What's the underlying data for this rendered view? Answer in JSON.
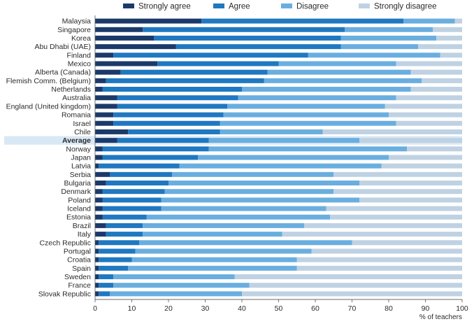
{
  "chart_data": {
    "type": "bar",
    "orientation": "horizontal",
    "stacked": true,
    "xlabel": "% of teachers",
    "xlim": [
      0,
      100
    ],
    "xticks": [
      0,
      10,
      20,
      30,
      40,
      50,
      60,
      70,
      80,
      90,
      100
    ],
    "legend_position": "top",
    "highlight_category": "Average",
    "categories": [
      "Malaysia",
      "Singapore",
      "Korea",
      "Abu Dhabi (UAE)",
      "Finland",
      "Mexico",
      "Alberta (Canada)",
      "Flemish Comm. (Belgium)",
      "Netherlands",
      "Australia",
      "England (United kingdom)",
      "Romania",
      "Israel",
      "Chile",
      "Average",
      "Norway",
      "Japan",
      "Latvia",
      "Serbia",
      "Bulgaria",
      "Denmark",
      "Poland",
      "Iceland",
      "Estonia",
      "Brazil",
      "Italy",
      "Czech Republic",
      "Portugal",
      "Croatia",
      "Spain",
      "Sweden",
      "France",
      "Slovak Republic"
    ],
    "series": [
      {
        "name": "Strongly agree",
        "color": "#1b3a6b",
        "values": [
          29,
          13,
          16,
          22,
          5,
          17,
          7,
          3,
          2,
          6,
          6,
          5,
          5,
          9,
          6,
          2,
          2,
          1,
          4,
          3,
          2,
          2,
          2,
          2,
          3,
          3,
          1,
          1,
          1,
          1,
          1,
          1,
          1
        ]
      },
      {
        "name": "Agree",
        "color": "#1f78c1",
        "values": [
          55,
          55,
          51,
          45,
          53,
          33,
          40,
          43,
          38,
          33,
          30,
          30,
          29,
          25,
          25,
          29,
          26,
          22,
          17,
          17,
          17,
          16,
          16,
          12,
          10,
          10,
          11,
          10,
          9,
          8,
          4,
          4,
          3
        ]
      },
      {
        "name": "Disagree",
        "color": "#6aaee0",
        "values": [
          14,
          24,
          26,
          21,
          36,
          32,
          39,
          43,
          46,
          43,
          43,
          45,
          48,
          28,
          41,
          54,
          52,
          55,
          44,
          52,
          46,
          54,
          45,
          50,
          44,
          38,
          58,
          48,
          45,
          46,
          33,
          37,
          36
        ]
      },
      {
        "name": "Strongly disagree",
        "color": "#bfd2e3",
        "values": [
          2,
          8,
          7,
          12,
          6,
          18,
          14,
          11,
          14,
          18,
          21,
          20,
          18,
          38,
          28,
          15,
          20,
          22,
          35,
          28,
          35,
          28,
          37,
          36,
          43,
          49,
          30,
          41,
          45,
          45,
          62,
          58,
          60
        ]
      }
    ]
  }
}
